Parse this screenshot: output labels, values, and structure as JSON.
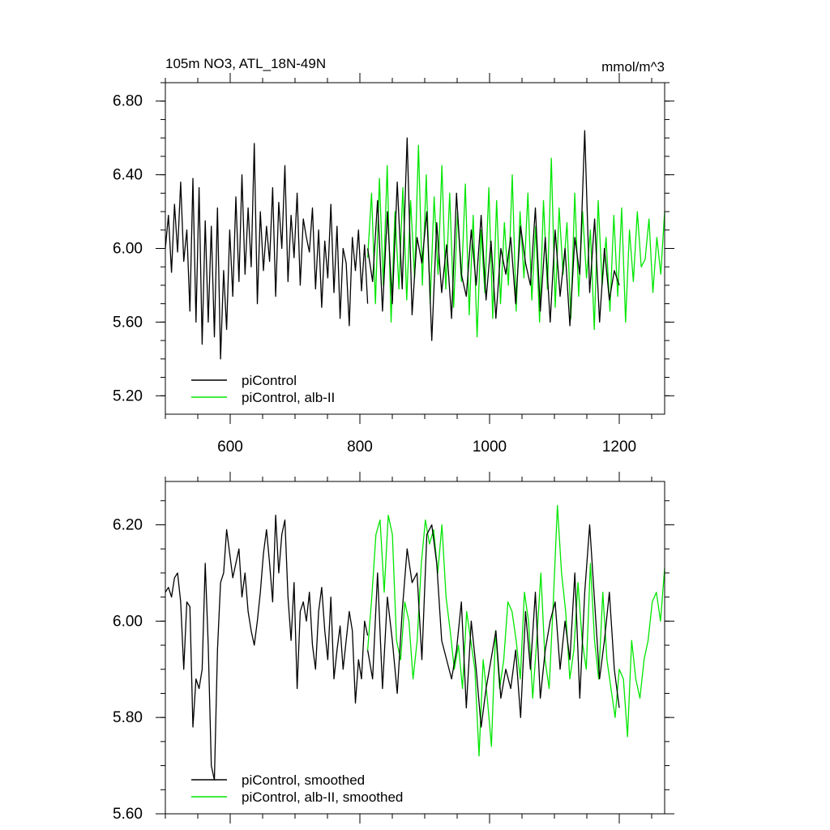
{
  "title_left": "105m NO3, ATL_18N-49N",
  "title_right": "mmol/m^3",
  "colors": {
    "control": "#000000",
    "albII": "#00e600",
    "axes": "#000000"
  },
  "chart_data": [
    {
      "type": "line",
      "panel": "top",
      "xlim": [
        500,
        1270
      ],
      "ylim": [
        5.1,
        6.9
      ],
      "xticks": [
        600,
        800,
        1000,
        1200
      ],
      "yticks": [
        5.2,
        5.6,
        6.0,
        6.4,
        6.8
      ],
      "ytick_labels": [
        "5.20",
        "5.60",
        "6.00",
        "6.40",
        "6.80"
      ],
      "xtick_labels": [
        "600",
        "800",
        "1000",
        "1200"
      ],
      "legend": "bottom-left",
      "series": [
        {
          "name": "piControl",
          "color": "#000000",
          "x_start": 500,
          "x_end": 1200,
          "y": [
            6.0,
            6.18,
            5.87,
            6.24,
            5.98,
            6.36,
            5.93,
            6.1,
            5.66,
            6.38,
            5.6,
            6.33,
            5.48,
            6.15,
            5.6,
            6.12,
            5.52,
            6.22,
            5.4,
            5.88,
            5.56,
            6.1,
            5.74,
            6.28,
            5.82,
            6.4,
            5.86,
            6.22,
            5.9,
            6.57,
            5.7,
            6.2,
            5.88,
            6.12,
            5.93,
            6.33,
            5.74,
            6.25,
            6.0,
            6.45,
            5.82,
            6.18,
            5.95,
            6.3,
            5.8,
            6.16,
            6.06,
            5.98,
            6.22,
            5.78,
            6.1,
            5.68,
            6.04,
            5.84,
            6.24,
            5.76,
            6.12,
            5.62,
            6.0,
            5.92,
            5.58,
            6.06,
            5.88,
            6.1,
            5.77,
            6.02,
            5.7
          ],
          "y2": [
            6.0,
            5.82,
            6.26,
            5.66,
            6.2,
            5.7,
            6.36,
            5.78,
            6.6,
            5.64,
            6.06,
            5.92,
            6.2,
            5.5,
            6.14,
            5.76,
            6.02,
            5.62,
            6.3,
            5.86,
            5.74,
            6.1,
            5.8,
            6.18,
            5.72,
            6.04,
            5.62,
            6.0,
            5.86,
            6.06,
            5.7,
            6.12,
            5.92,
            5.8,
            6.22,
            5.66,
            6.06,
            5.6,
            6.1,
            5.74,
            6.0,
            5.58,
            6.06,
            5.86,
            6.64,
            5.76,
            6.16,
            5.6,
            6.0,
            5.72,
            5.88,
            5.8
          ]
        },
        {
          "name": "piControl, alb-II",
          "color": "#00e600",
          "x_start": 812,
          "x_end": 1270,
          "y": [
            5.95,
            6.3,
            5.7,
            6.38,
            5.8,
            6.45,
            5.6,
            6.2,
            5.78,
            6.33,
            5.72,
            6.26,
            5.84,
            6.56,
            5.8,
            6.4,
            5.7,
            6.28,
            5.86,
            6.45,
            5.78,
            6.3,
            5.68,
            6.2,
            5.82,
            6.35,
            5.64,
            6.18,
            5.52,
            6.1,
            5.76,
            6.33,
            5.62,
            6.26,
            5.7,
            6.14,
            5.8,
            6.4,
            5.66,
            6.2,
            5.84,
            6.3,
            5.72,
            6.12,
            5.6,
            6.26,
            5.78,
            6.49,
            5.68,
            6.22,
            5.86,
            6.14,
            5.62,
            6.3,
            5.74,
            6.2,
            5.84,
            6.1,
            5.56,
            6.26,
            5.8,
            6.06,
            5.66,
            6.18,
            5.74,
            6.22,
            5.6,
            6.1,
            5.82,
            6.2,
            5.9,
            5.94,
            6.16,
            5.76,
            6.06,
            5.86,
            6.2
          ]
        }
      ]
    },
    {
      "type": "line",
      "panel": "bottom",
      "xlim": [
        500,
        1270
      ],
      "ylim": [
        5.6,
        6.29
      ],
      "xticks": [
        600,
        800,
        1000,
        1200
      ],
      "yticks": [
        5.6,
        5.8,
        6.0,
        6.2
      ],
      "ytick_labels": [
        "5.60",
        "5.80",
        "6.00",
        "6.20"
      ],
      "legend": "bottom-left",
      "series": [
        {
          "name": "piControl, smoothed",
          "color": "#000000",
          "x_start": 500,
          "x_end": 1200,
          "y": [
            6.06,
            6.07,
            6.05,
            6.09,
            6.1,
            6.04,
            5.9,
            6.04,
            6.03,
            5.78,
            5.88,
            5.86,
            5.9,
            6.12,
            5.95,
            5.7,
            5.67,
            5.94,
            6.08,
            6.1,
            6.19,
            6.14,
            6.09,
            6.12,
            6.15,
            6.05,
            6.1,
            6.02,
            5.98,
            5.95,
            6.0,
            6.06,
            6.14,
            6.19,
            6.12,
            6.04,
            6.22,
            6.1,
            6.18,
            6.21,
            6.05,
            5.96,
            6.08,
            5.86,
            6.02,
            6.04,
            6.0,
            6.06,
            5.95,
            5.9,
            6.02,
            6.07,
            5.98,
            5.92,
            6.05,
            5.88,
            5.94,
            5.99,
            5.9,
            5.96,
            6.02,
            5.98,
            5.83,
            5.92,
            5.88,
            6.0,
            5.97
          ],
          "y2": [
            5.94,
            5.88,
            6.1,
            5.86,
            6.05,
            5.96,
            5.85,
            6.02,
            6.15,
            6.08,
            6.1,
            5.92,
            6.18,
            6.2,
            6.12,
            5.96,
            5.92,
            5.88,
            5.94,
            6.04,
            5.82,
            6.0,
            5.9,
            5.78,
            5.86,
            5.92,
            5.98,
            5.84,
            5.9,
            5.86,
            5.94,
            5.8,
            6.02,
            5.9,
            6.06,
            5.84,
            5.94,
            6.0,
            6.04,
            5.9,
            6.0,
            5.92,
            6.1,
            5.84,
            6.06,
            6.2,
            6.04,
            5.88,
            5.96,
            6.06,
            5.9,
            5.82
          ],
          "x2_start": 812
        },
        {
          "name": "piControl, alb-II, smoothed",
          "color": "#00e600",
          "x_start": 812,
          "x_end": 1270,
          "y": [
            5.94,
            6.05,
            6.18,
            6.21,
            6.06,
            6.22,
            6.18,
            5.96,
            5.92,
            6.04,
            6.0,
            5.88,
            5.96,
            6.12,
            6.21,
            6.16,
            6.19,
            6.1,
            6.2,
            6.05,
            5.98,
            5.9,
            5.95,
            5.86,
            6.02,
            5.96,
            5.9,
            5.72,
            5.92,
            5.84,
            5.74,
            5.98,
            5.86,
            5.92,
            6.04,
            6.02,
            5.96,
            5.88,
            6.06,
            6.0,
            5.84,
            5.96,
            6.1,
            5.92,
            5.86,
            6.04,
            6.24,
            6.1,
            6.02,
            5.88,
            5.94,
            6.08,
            5.96,
            5.9,
            6.12,
            5.96,
            5.88,
            6.06,
            5.92,
            5.86,
            5.8,
            5.9,
            5.88,
            5.76,
            5.96,
            5.88,
            5.84,
            5.92,
            5.96,
            6.04,
            6.06,
            6.0,
            6.11
          ]
        }
      ]
    }
  ]
}
